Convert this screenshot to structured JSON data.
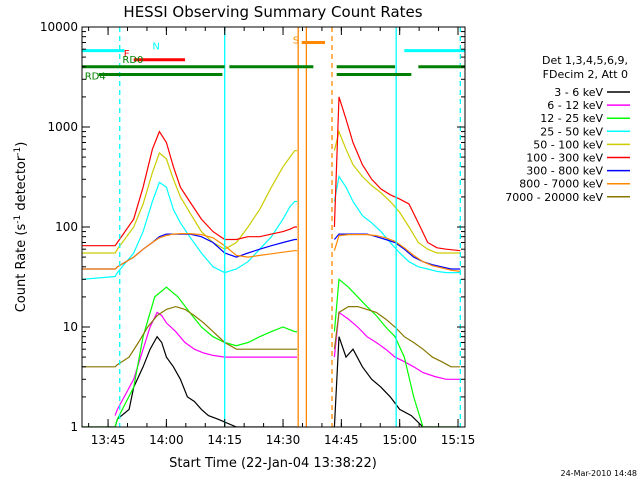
{
  "chart_data": {
    "type": "line",
    "title": "HESSI Observing Summary Count Rates",
    "xlabel": "Start Time (22-Jan-04 13:38:22)",
    "ylabel": "Count Rate (s",
    "ylabel_sup": "-1",
    "ylabel_mid": " detector",
    "ylabel_sup2": "-1",
    "ylabel_end": ")",
    "yscale": "log",
    "ylim": [
      1,
      10000
    ],
    "xlim": [
      13.6383,
      15.28
    ],
    "y_ticks": [
      {
        "v": 1,
        "label": "1"
      },
      {
        "v": 10,
        "label": "10"
      },
      {
        "v": 100,
        "label": "100"
      },
      {
        "v": 1000,
        "label": "1000"
      },
      {
        "v": 10000,
        "label": "10000"
      }
    ],
    "x_ticks": [
      {
        "v": 13.75,
        "label": "13:45"
      },
      {
        "v": 14.0,
        "label": "14:00"
      },
      {
        "v": 14.25,
        "label": "14:15"
      },
      {
        "v": 14.5,
        "label": "14:30"
      },
      {
        "v": 14.75,
        "label": "14:45"
      },
      {
        "v": 15.0,
        "label": "15:00"
      },
      {
        "v": 15.25,
        "label": "15:15"
      }
    ],
    "legend_header": [
      "Det 1,3,4,5,6,9,",
      "FDecim 2, Att 0"
    ],
    "series": [
      {
        "name": "3 - 6 keV",
        "color": "#000000",
        "x": [
          13.64,
          13.78,
          13.79,
          13.84,
          13.86,
          13.9,
          13.93,
          13.96,
          13.98,
          14.0,
          14.03,
          14.06,
          14.09,
          14.12,
          14.15,
          14.18,
          14.22,
          14.3,
          14.4,
          14.55,
          14.56
        ],
        "y": [
          1,
          1,
          1.2,
          1.5,
          2.5,
          4,
          6,
          8,
          7,
          5,
          4,
          3,
          2,
          1.8,
          1.5,
          1.3,
          1.2,
          1,
          1,
          1,
          1
        ]
      },
      {
        "name": "3 - 6 keV",
        "color": "#000000",
        "x": [
          14.72,
          14.74,
          14.77,
          14.8,
          14.84,
          14.88,
          14.92,
          14.96,
          15.0,
          15.05,
          15.1,
          15.15,
          15.2,
          15.26
        ],
        "y": [
          1,
          8,
          5,
          6,
          4,
          3,
          2.5,
          2,
          1.5,
          1.3,
          1,
          1,
          1,
          1
        ]
      },
      {
        "name": "6 - 12 keV",
        "color": "#ff00ff",
        "x": [
          13.78,
          13.79,
          13.86,
          13.9,
          13.93,
          13.96,
          13.98,
          14.0,
          14.04,
          14.08,
          14.12,
          14.16,
          14.2,
          14.25,
          14.3,
          14.4,
          14.5,
          14.55,
          14.56
        ],
        "y": [
          1.3,
          1.5,
          3,
          6,
          10,
          14,
          13,
          11,
          9,
          7,
          6,
          5.5,
          5.2,
          5,
          5,
          5,
          5,
          5,
          5
        ]
      },
      {
        "name": "6 - 12 keV",
        "color": "#ff00ff",
        "x": [
          14.72,
          14.74,
          14.78,
          14.82,
          14.86,
          14.9,
          14.94,
          14.98,
          15.02,
          15.06,
          15.1,
          15.15,
          15.2,
          15.26
        ],
        "y": [
          5,
          14,
          12,
          10,
          8,
          7,
          6,
          5,
          4.5,
          4,
          3.5,
          3.2,
          3,
          3
        ]
      },
      {
        "name": "12 - 25 keV",
        "color": "#00ff00",
        "x": [
          13.64,
          13.78,
          13.79,
          13.86,
          13.9,
          13.95,
          14.0,
          14.05,
          14.1,
          14.15,
          14.2,
          14.25,
          14.3,
          14.35,
          14.4,
          14.45,
          14.5,
          14.55,
          14.56
        ],
        "y": [
          1,
          1,
          1.2,
          2.5,
          8,
          20,
          25,
          20,
          14,
          10,
          8,
          7,
          6.5,
          7,
          8,
          9,
          10,
          9,
          9
        ]
      },
      {
        "name": "12 - 25 keV",
        "color": "#00ff00",
        "x": [
          14.72,
          14.74,
          14.78,
          14.82,
          14.86,
          14.9,
          14.94,
          14.98,
          15.02,
          15.06,
          15.1,
          15.15,
          15.2,
          15.26
        ],
        "y": [
          9,
          30,
          25,
          20,
          16,
          13,
          10,
          8,
          5,
          2,
          1,
          1,
          1,
          1
        ]
      },
      {
        "name": "25 - 50 keV",
        "color": "#00ffff",
        "x": [
          13.64,
          13.78,
          13.79,
          13.86,
          13.9,
          13.94,
          13.97,
          14.0,
          14.03,
          14.06,
          14.1,
          14.15,
          14.2,
          14.25,
          14.3,
          14.35,
          14.4,
          14.45,
          14.5,
          14.53,
          14.55,
          14.56
        ],
        "y": [
          30,
          32,
          35,
          55,
          90,
          180,
          280,
          250,
          150,
          110,
          80,
          55,
          40,
          35,
          38,
          45,
          60,
          80,
          120,
          160,
          180,
          180
        ]
      },
      {
        "name": "25 - 50 keV",
        "color": "#00ffff",
        "x": [
          14.72,
          14.74,
          14.77,
          14.8,
          14.84,
          14.88,
          14.92,
          14.96,
          15.0,
          15.04,
          15.08,
          15.12,
          15.16,
          15.2,
          15.26
        ],
        "y": [
          180,
          320,
          250,
          180,
          130,
          110,
          90,
          70,
          55,
          45,
          40,
          38,
          36,
          35,
          35
        ]
      },
      {
        "name": "50 - 100 keV",
        "color": "#cccc00",
        "x": [
          13.64,
          13.78,
          13.79,
          13.86,
          13.9,
          13.94,
          13.97,
          14.0,
          14.03,
          14.06,
          14.1,
          14.15,
          14.2,
          14.25,
          14.3,
          14.35,
          14.4,
          14.45,
          14.5,
          14.53,
          14.55,
          14.56
        ],
        "y": [
          55,
          55,
          60,
          100,
          170,
          350,
          550,
          480,
          300,
          200,
          140,
          90,
          70,
          60,
          70,
          100,
          150,
          250,
          400,
          500,
          580,
          580
        ]
      },
      {
        "name": "50 - 100 keV",
        "color": "#cccc00",
        "x": [
          14.72,
          14.74,
          14.77,
          14.8,
          14.84,
          14.88,
          14.92,
          14.96,
          15.0,
          15.04,
          15.08,
          15.12,
          15.16,
          15.2,
          15.26
        ],
        "y": [
          580,
          900,
          600,
          420,
          320,
          260,
          220,
          180,
          140,
          100,
          70,
          60,
          55,
          55,
          55
        ]
      },
      {
        "name": "100 - 300 keV",
        "color": "#ff0000",
        "x": [
          13.64,
          13.78,
          13.79,
          13.86,
          13.9,
          13.94,
          13.97,
          14.0,
          14.03,
          14.06,
          14.1,
          14.15,
          14.2,
          14.25,
          14.3,
          14.35,
          14.4,
          14.45,
          14.5,
          14.53,
          14.55,
          14.56
        ],
        "y": [
          65,
          65,
          70,
          120,
          250,
          600,
          900,
          700,
          400,
          250,
          180,
          120,
          90,
          75,
          75,
          80,
          80,
          85,
          90,
          95,
          100,
          100
        ]
      },
      {
        "name": "100 - 300 keV",
        "color": "#ff0000",
        "x": [
          14.72,
          14.74,
          14.77,
          14.8,
          14.84,
          14.88,
          14.92,
          14.96,
          15.0,
          15.04,
          15.08,
          15.12,
          15.16,
          15.2,
          15.26
        ],
        "y": [
          100,
          2000,
          1200,
          700,
          420,
          300,
          240,
          210,
          190,
          170,
          110,
          70,
          62,
          60,
          58
        ]
      },
      {
        "name": "300 - 800 keV",
        "color": "#0000ff",
        "x": [
          13.64,
          13.78,
          13.79,
          13.86,
          13.9,
          13.94,
          13.97,
          14.0,
          14.03,
          14.06,
          14.1,
          14.15,
          14.2,
          14.25,
          14.3,
          14.35,
          14.4,
          14.45,
          14.5,
          14.55,
          14.56
        ],
        "y": [
          38,
          38,
          40,
          50,
          60,
          70,
          80,
          85,
          85,
          85,
          85,
          80,
          70,
          55,
          50,
          55,
          60,
          65,
          70,
          75,
          75
        ]
      },
      {
        "name": "300 - 800 keV",
        "color": "#0000ff",
        "x": [
          14.72,
          14.74,
          14.78,
          14.82,
          14.86,
          14.9,
          14.94,
          14.98,
          15.02,
          15.06,
          15.1,
          15.14,
          15.18,
          15.22,
          15.26
        ],
        "y": [
          75,
          85,
          85,
          85,
          85,
          80,
          75,
          70,
          60,
          50,
          45,
          42,
          40,
          38,
          38
        ]
      },
      {
        "name": "800 - 7000 keV",
        "color": "#ff8800",
        "x": [
          13.64,
          13.78,
          13.79,
          13.86,
          13.9,
          13.94,
          13.97,
          14.0,
          14.03,
          14.06,
          14.1,
          14.15,
          14.2,
          14.25,
          14.3,
          14.35,
          14.4,
          14.45,
          14.5,
          14.55,
          14.56
        ],
        "y": [
          38,
          38,
          40,
          50,
          60,
          70,
          78,
          82,
          85,
          86,
          86,
          84,
          78,
          65,
          52,
          50,
          52,
          54,
          56,
          58,
          58
        ]
      },
      {
        "name": "800 - 7000 keV",
        "color": "#ff8800",
        "x": [
          14.72,
          14.74,
          14.78,
          14.82,
          14.86,
          14.9,
          14.94,
          14.98,
          15.02,
          15.06,
          15.1,
          15.14,
          15.18,
          15.22,
          15.26
        ],
        "y": [
          58,
          82,
          84,
          84,
          84,
          82,
          78,
          72,
          62,
          52,
          45,
          41,
          39,
          37,
          36
        ]
      },
      {
        "name": "7000 - 20000 keV",
        "color": "#887700",
        "x": [
          13.64,
          13.78,
          13.79,
          13.84,
          13.88,
          13.92,
          13.96,
          14.0,
          14.04,
          14.08,
          14.12,
          14.16,
          14.2,
          14.25,
          14.3,
          14.35,
          14.4,
          14.45,
          14.5,
          14.55,
          14.56
        ],
        "y": [
          4,
          4,
          4.2,
          5,
          7,
          10,
          13,
          15,
          16,
          15,
          13,
          11,
          9,
          7,
          6,
          6,
          6,
          6,
          6,
          6,
          6
        ]
      },
      {
        "name": "7000 - 20000 keV",
        "color": "#887700",
        "x": [
          14.72,
          14.74,
          14.78,
          14.82,
          14.86,
          14.9,
          14.94,
          14.98,
          15.02,
          15.06,
          15.1,
          15.14,
          15.18,
          15.22,
          15.26
        ],
        "y": [
          6,
          14,
          16,
          16,
          15,
          14,
          12,
          10,
          8,
          7,
          6,
          5,
          4.5,
          4,
          4
        ]
      }
    ],
    "flag_bars": [
      {
        "label": "N",
        "color": "#00ffff",
        "y": 5800,
        "segments": [
          [
            13.64,
            13.82
          ],
          [
            15.02,
            15.28
          ]
        ]
      },
      {
        "label": "F",
        "color": "#ff0000",
        "y": 4700,
        "segments": [
          [
            13.86,
            14.08
          ]
        ]
      },
      {
        "label": "S",
        "color": "#ff8800",
        "y": 7000,
        "segments": [
          [
            14.58,
            14.68
          ]
        ]
      },
      {
        "label": "RD0",
        "color": "#008000",
        "y": 4000,
        "segments": [
          [
            13.64,
            14.25
          ],
          [
            14.27,
            14.63
          ],
          [
            14.73,
            14.98
          ],
          [
            15.08,
            15.28
          ]
        ]
      },
      {
        "label": "RD4",
        "color": "#008000",
        "y": 3350,
        "segments": [
          [
            13.71,
            14.24
          ],
          [
            14.73,
            15.05
          ]
        ]
      }
    ],
    "vlines": [
      {
        "x": 13.8,
        "color": "#00ffff",
        "style": "dashed"
      },
      {
        "x": 14.25,
        "color": "#00ffff",
        "style": "solid"
      },
      {
        "x": 14.565,
        "color": "#ff8800",
        "style": "solid"
      },
      {
        "x": 14.6,
        "color": "#ff8800",
        "style": "solid"
      },
      {
        "x": 14.71,
        "color": "#ff8800",
        "style": "dashed"
      },
      {
        "x": 14.985,
        "color": "#00ffff",
        "style": "solid"
      },
      {
        "x": 15.26,
        "color": "#00ffff",
        "style": "dashed"
      }
    ],
    "stamp": "24-Mar-2010 14:48"
  }
}
